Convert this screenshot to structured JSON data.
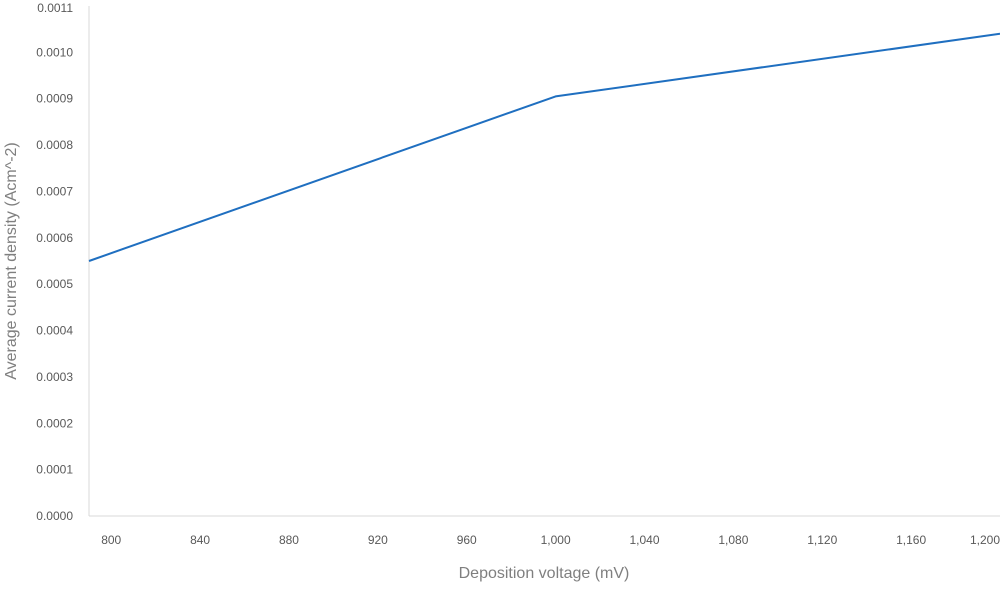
{
  "chart_data": {
    "type": "line",
    "title": "",
    "xlabel": "Deposition voltage (mV)",
    "ylabel": "Average current density (Acm^-2)",
    "xlim": [
      790,
      1200
    ],
    "ylim": [
      0,
      0.0011
    ],
    "x_ticks": [
      800,
      840,
      880,
      920,
      960,
      1000,
      1040,
      1080,
      1120,
      1160,
      1200
    ],
    "x_tick_labels": [
      "800",
      "840",
      "880",
      "920",
      "960",
      "1,000",
      "1,040",
      "1,080",
      "1,120",
      "1,160",
      "1,200"
    ],
    "y_ticks": [
      0,
      0.0001,
      0.0002,
      0.0003,
      0.0004,
      0.0005,
      0.0006,
      0.0007,
      0.0008,
      0.0009,
      0.001,
      0.0011
    ],
    "y_tick_labels": [
      "0.0000",
      "0.0001",
      "0.0002",
      "0.0003",
      "0.0004",
      "0.0005",
      "0.0006",
      "0.0007",
      "0.0008",
      "0.0009",
      "0.0010",
      "0.0011"
    ],
    "grid": false,
    "series": [
      {
        "color": "#1f6fc0",
        "x": [
          790,
          1000,
          1200
        ],
        "y": [
          0.00055,
          0.000905,
          0.00104
        ]
      }
    ]
  }
}
